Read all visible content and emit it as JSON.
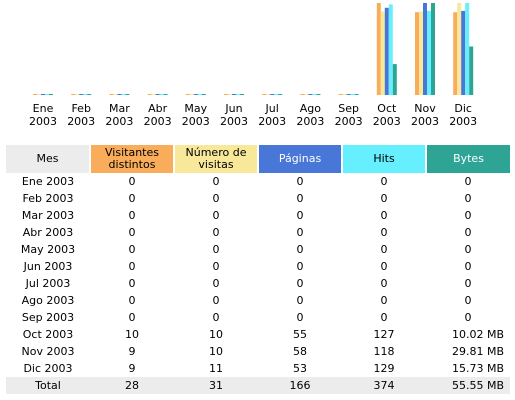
{
  "chart_data": {
    "type": "bar",
    "categories": [
      "Ene",
      "Feb",
      "Mar",
      "Abr",
      "May",
      "Jun",
      "Jul",
      "Ago",
      "Sep",
      "Oct",
      "Nov",
      "Dic"
    ],
    "years": [
      "2003",
      "2003",
      "2003",
      "2003",
      "2003",
      "2003",
      "2003",
      "2003",
      "2003",
      "2003",
      "2003",
      "2003"
    ],
    "series": [
      {
        "name": "Visitantes distintos",
        "values": [
          0,
          0,
          0,
          0,
          0,
          0,
          0,
          0,
          0,
          10,
          9,
          9
        ],
        "color": "#f9ad5a"
      },
      {
        "name": "Número de visitas",
        "values": [
          0,
          0,
          0,
          0,
          0,
          0,
          0,
          0,
          0,
          10,
          10,
          11
        ],
        "color": "#f7e89a"
      },
      {
        "name": "Páginas",
        "values": [
          0,
          0,
          0,
          0,
          0,
          0,
          0,
          0,
          0,
          55,
          58,
          53
        ],
        "color": "#4977d7"
      },
      {
        "name": "Hits",
        "values": [
          0,
          0,
          0,
          0,
          0,
          0,
          0,
          0,
          0,
          127,
          118,
          129
        ],
        "color": "#66f0ff"
      },
      {
        "name": "Bytes (MB)",
        "values": [
          0,
          0,
          0,
          0,
          0,
          0,
          0,
          0,
          0,
          10.02,
          29.81,
          15.73
        ],
        "color": "#2ea495"
      }
    ],
    "grid": false
  },
  "table": {
    "headers": {
      "mes": "Mes",
      "visitantes": "Visitantes distintos",
      "visitas": "Número de visitas",
      "paginas": "Páginas",
      "hits": "Hits",
      "bytes": "Bytes"
    },
    "rows": [
      {
        "mes": "Ene 2003",
        "visitantes": "0",
        "visitas": "0",
        "paginas": "0",
        "hits": "0",
        "bytes": "0"
      },
      {
        "mes": "Feb 2003",
        "visitantes": "0",
        "visitas": "0",
        "paginas": "0",
        "hits": "0",
        "bytes": "0"
      },
      {
        "mes": "Mar 2003",
        "visitantes": "0",
        "visitas": "0",
        "paginas": "0",
        "hits": "0",
        "bytes": "0"
      },
      {
        "mes": "Abr 2003",
        "visitantes": "0",
        "visitas": "0",
        "paginas": "0",
        "hits": "0",
        "bytes": "0"
      },
      {
        "mes": "May 2003",
        "visitantes": "0",
        "visitas": "0",
        "paginas": "0",
        "hits": "0",
        "bytes": "0"
      },
      {
        "mes": "Jun 2003",
        "visitantes": "0",
        "visitas": "0",
        "paginas": "0",
        "hits": "0",
        "bytes": "0"
      },
      {
        "mes": "Jul 2003",
        "visitantes": "0",
        "visitas": "0",
        "paginas": "0",
        "hits": "0",
        "bytes": "0"
      },
      {
        "mes": "Ago 2003",
        "visitantes": "0",
        "visitas": "0",
        "paginas": "0",
        "hits": "0",
        "bytes": "0"
      },
      {
        "mes": "Sep 2003",
        "visitantes": "0",
        "visitas": "0",
        "paginas": "0",
        "hits": "0",
        "bytes": "0"
      },
      {
        "mes": "Oct 2003",
        "visitantes": "10",
        "visitas": "10",
        "paginas": "55",
        "hits": "127",
        "bytes": "10.02 MB"
      },
      {
        "mes": "Nov 2003",
        "visitantes": "9",
        "visitas": "10",
        "paginas": "58",
        "hits": "118",
        "bytes": "29.81 MB"
      },
      {
        "mes": "Dic 2003",
        "visitantes": "9",
        "visitas": "11",
        "paginas": "53",
        "hits": "129",
        "bytes": "15.73 MB"
      }
    ],
    "total": {
      "mes": "Total",
      "visitantes": "28",
      "visitas": "31",
      "paginas": "166",
      "hits": "374",
      "bytes": "55.55 MB"
    }
  }
}
